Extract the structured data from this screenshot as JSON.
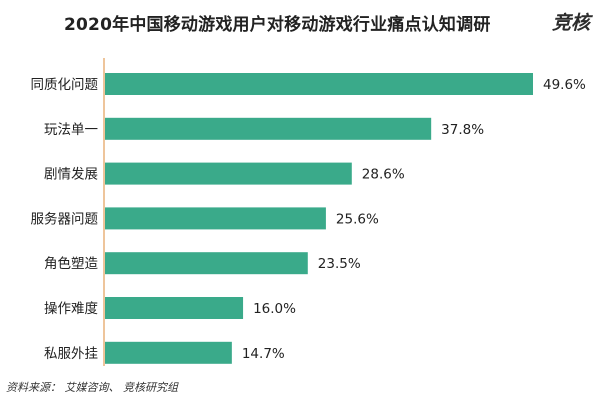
{
  "title": "2020年中国移动游戏用户对移动游戏行业痛点认知调研",
  "logo_text": "竞核",
  "source": "资料来源： 艾媒咨询、 竞核研究组",
  "chart_data": {
    "type": "bar",
    "orientation": "horizontal",
    "title": "2020年中国移动游戏用户对移动游戏行业痛点认知调研",
    "xlabel": "",
    "ylabel": "",
    "xlim": [
      0,
      49.6
    ],
    "grid": false,
    "legend": "none",
    "bar_color": "#3aaa8a",
    "axis_color": "#e8b27a",
    "categories": [
      "同质化问题",
      "玩法单一",
      "剧情发展",
      "服务器问题",
      "角色塑造",
      "操作难度",
      "私服外挂"
    ],
    "values": [
      49.6,
      37.8,
      28.6,
      25.6,
      23.5,
      16.0,
      14.7
    ],
    "data_labels": [
      "49.6%",
      "37.8%",
      "28.6%",
      "25.6%",
      "23.5%",
      "16.0%",
      "14.7%"
    ]
  }
}
